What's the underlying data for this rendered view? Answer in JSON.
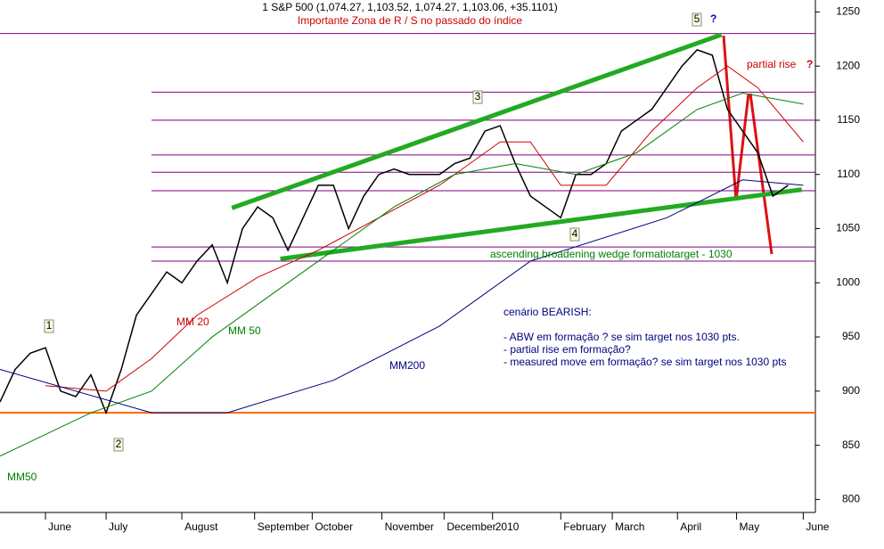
{
  "chart_data": {
    "type": "line",
    "title": "1 S&P 500 (1,074.27, 1,103.52, 1,074.27, 1,103.06, +35.1101)",
    "subtitle": "Importante Zona de R / S no passado do índice",
    "xlim": [
      0,
      53.8
    ],
    "ylim": [
      788,
      1261
    ],
    "yticks": [
      800,
      850,
      900,
      950,
      1000,
      1050,
      1100,
      1150,
      1200,
      1250
    ],
    "xticks": [
      {
        "value": 3,
        "label": "June"
      },
      {
        "value": 7,
        "label": "July"
      },
      {
        "value": 12,
        "label": "August"
      },
      {
        "value": 16.8,
        "label": "September"
      },
      {
        "value": 20.6,
        "label": "October"
      },
      {
        "value": 25.2,
        "label": "November"
      },
      {
        "value": 29.3,
        "label": "December"
      },
      {
        "value": 32.5,
        "label": "2010"
      },
      {
        "value": 37,
        "label": "February"
      },
      {
        "value": 40.4,
        "label": "March"
      },
      {
        "value": 44.7,
        "label": "April"
      },
      {
        "value": 48.6,
        "label": "May"
      },
      {
        "value": 53,
        "label": "June"
      }
    ],
    "x": [
      0,
      1,
      2,
      3,
      4,
      5,
      6,
      7,
      8,
      9,
      10,
      11,
      12,
      13,
      14,
      15,
      16,
      17,
      18,
      19,
      20,
      21,
      22,
      23,
      24,
      25,
      26,
      27,
      28,
      29,
      30,
      31,
      32,
      33,
      34,
      35,
      36,
      37,
      38,
      39,
      40,
      41,
      42,
      43,
      44,
      45,
      46,
      47,
      48,
      49,
      50,
      51,
      52
    ],
    "series": [
      {
        "name": "S&P 500",
        "color": "#000000",
        "values": [
          890,
          920,
          935,
          940,
          900,
          895,
          915,
          880,
          920,
          970,
          990,
          1010,
          1000,
          1020,
          1035,
          1000,
          1050,
          1070,
          1060,
          1030,
          1060,
          1090,
          1090,
          1050,
          1080,
          1100,
          1105,
          1100,
          1100,
          1100,
          1110,
          1115,
          1140,
          1145,
          1110,
          1080,
          1070,
          1060,
          1100,
          1100,
          1110,
          1140,
          1150,
          1160,
          1180,
          1200,
          1215,
          1210,
          1160,
          1140,
          1120,
          1080,
          1090
        ]
      },
      {
        "name": "MM 20",
        "color": "#cc0000",
        "x": [
          3,
          7,
          10,
          13,
          17,
          21,
          25,
          29,
          33,
          35,
          37,
          40,
          43,
          46,
          48,
          50,
          53
        ],
        "values": [
          905,
          900,
          930,
          970,
          1005,
          1030,
          1060,
          1090,
          1130,
          1130,
          1090,
          1090,
          1140,
          1180,
          1200,
          1180,
          1130
        ]
      },
      {
        "name": "MM 50",
        "color": "#008000",
        "x": [
          0,
          6,
          10,
          14,
          18,
          22,
          26,
          30,
          34,
          38,
          42,
          46,
          49,
          53
        ],
        "values": [
          840,
          880,
          900,
          950,
          990,
          1030,
          1070,
          1100,
          1110,
          1100,
          1120,
          1160,
          1175,
          1165
        ]
      },
      {
        "name": "MM200",
        "color": "#000080",
        "x": [
          0,
          10,
          15,
          22,
          29,
          35,
          44,
          49,
          53
        ],
        "values": [
          920,
          880,
          880,
          910,
          960,
          1020,
          1060,
          1095,
          1090
        ]
      }
    ],
    "trendlines": [
      {
        "color": "#22aa22",
        "x": [
          15.3,
          47.6
        ],
        "values": [
          1069,
          1229
        ]
      },
      {
        "color": "#22aa22",
        "x": [
          18.5,
          52.9
        ],
        "values": [
          1022,
          1086
        ]
      }
    ],
    "levels": [
      {
        "color": "#800080",
        "value": 1230
      },
      {
        "color": "#800080",
        "value": 1176
      },
      {
        "color": "#800080",
        "value": 1150
      },
      {
        "color": "#800080",
        "value": 1118
      },
      {
        "color": "#800080",
        "value": 1102
      },
      {
        "color": "#800080",
        "value": 1085
      },
      {
        "color": "#800080",
        "value": 1033
      },
      {
        "color": "#800080",
        "value": 1020
      },
      {
        "color": "#ff6600",
        "value": 880
      }
    ],
    "annotations": [
      {
        "text": "ascending broadening  wedge formatiotarget - 1030",
        "color": "#008000"
      },
      {
        "text": "MM 20",
        "color": "#cc0000"
      },
      {
        "text": "MM 50",
        "color": "#008000"
      },
      {
        "text": "MM200",
        "color": "#000080"
      },
      {
        "text": "MM50",
        "color": "#008000"
      },
      {
        "text": "partial rise",
        "color": "#cc0000"
      },
      {
        "text": "?",
        "color": "#cc0000"
      },
      {
        "text": "?",
        "color": "#0000cc"
      },
      {
        "text": "1",
        "color": "#000000"
      },
      {
        "text": "2",
        "color": "#000000"
      },
      {
        "text": "3",
        "color": "#000000"
      },
      {
        "text": "4",
        "color": "#000000"
      },
      {
        "text": "5",
        "color": "#000000"
      }
    ],
    "scenario": [
      "cenário BEARISH:",
      "- ABW em formação ? se sim target nos 1030 pts.",
      "- partial rise em formação?",
      "- measured move em formação? se sim target nos 1030 pts"
    ]
  }
}
